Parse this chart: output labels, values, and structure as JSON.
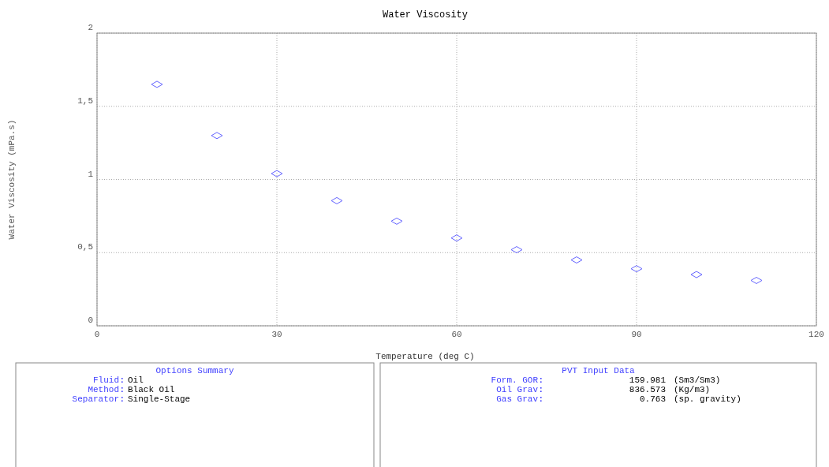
{
  "chart_data": [
    {
      "type": "scatter",
      "title": "Water Viscosity",
      "xlabel": "Temperature (deg C)",
      "ylabel": "Water Viscosity (mPa.s)",
      "x": [
        10,
        20,
        30,
        40,
        50,
        60,
        70,
        80,
        90,
        100,
        110
      ],
      "series": [
        {
          "color": "#6666ff",
          "values": [
            1.65,
            1.3,
            1.04,
            0.855,
            0.715,
            0.6,
            0.52,
            0.45,
            0.39,
            0.35,
            0.31
          ]
        }
      ],
      "xlim": [
        0,
        120
      ],
      "xticks": [
        0,
        30,
        60,
        90,
        120
      ],
      "ylim": [
        0,
        2
      ],
      "yticks": [
        0,
        {
          "value": 0.5,
          "label": "0,5"
        },
        1,
        {
          "value": 1.5,
          "label": "1,5"
        },
        2
      ],
      "grid": true,
      "marker": "diamond"
    },
    {
      "type": "other",
      "title": "Options Summary",
      "categories": [
        "Fluid",
        "Method",
        "Separator"
      ],
      "annotations": [
        "Oil",
        "Black Oil",
        "Single-Stage"
      ]
    },
    {
      "type": "other",
      "title": "PVT Input Data",
      "categories": [
        "Form. GOR",
        "Oil Grav",
        "Gas Grav"
      ],
      "values": [
        159.981,
        836.573,
        0.763
      ],
      "data_labels": true,
      "annotations": [
        "(Sm3/Sm3)",
        "(Kg/m3)",
        "(sp. gravity)"
      ]
    }
  ]
}
